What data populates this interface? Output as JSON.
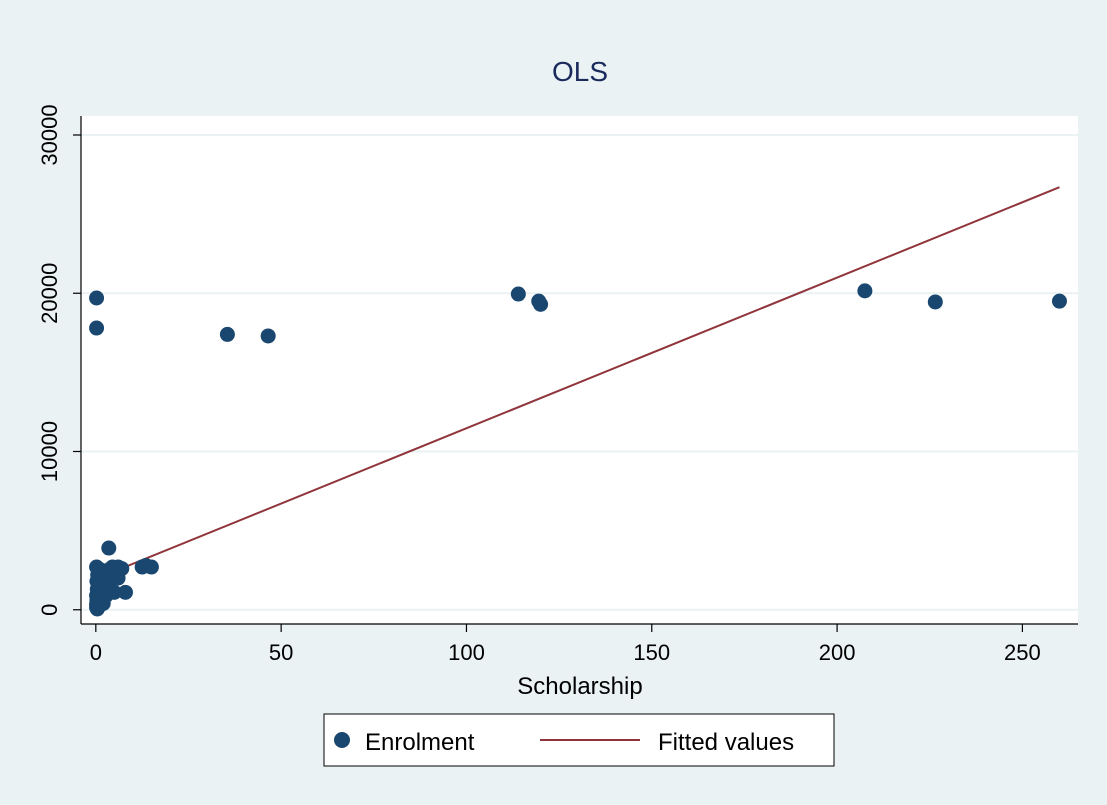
{
  "chart_data": {
    "type": "scatter",
    "title": "OLS",
    "xlabel": "Scholarship",
    "ylabel": "",
    "xlim": [
      -4,
      265
    ],
    "ylim": [
      -900,
      31200
    ],
    "x_ticks": [
      0,
      50,
      100,
      150,
      200,
      250
    ],
    "x_tick_labels": [
      "0",
      "50",
      "100",
      "150",
      "200",
      "250"
    ],
    "y_ticks": [
      0,
      10000,
      20000,
      30000
    ],
    "y_tick_labels": [
      "0",
      "10000",
      "20000",
      "30000"
    ],
    "grid": "horizontal",
    "legend_position": "bottom",
    "colors": {
      "background": "#eaf2f3",
      "plot_background": "#ffffff",
      "points": "#1a476f",
      "fitted_line": "#90353b",
      "title": "#1a2a5c",
      "grid": "#eaf2f3"
    },
    "series": [
      {
        "name": "Enrolment",
        "kind": "scatter",
        "points": [
          [
            0.2,
            19700
          ],
          [
            0.2,
            17800
          ],
          [
            35.5,
            17400
          ],
          [
            46.5,
            17300
          ],
          [
            114,
            19950
          ],
          [
            119.5,
            19500
          ],
          [
            120,
            19300
          ],
          [
            207.5,
            20150
          ],
          [
            226.5,
            19450
          ],
          [
            260,
            19500
          ],
          [
            3.5,
            3900
          ],
          [
            0.2,
            2700
          ],
          [
            0.5,
            2200
          ],
          [
            0.3,
            1800
          ],
          [
            0.4,
            1300
          ],
          [
            0.2,
            900
          ],
          [
            0.3,
            600
          ],
          [
            0.2,
            350
          ],
          [
            0.2,
            150
          ],
          [
            0.4,
            50
          ],
          [
            0.8,
            500
          ],
          [
            1.2,
            300
          ],
          [
            1.5,
            700
          ],
          [
            1.8,
            1000
          ],
          [
            2.0,
            400
          ],
          [
            1.0,
            1500
          ],
          [
            2.5,
            1800
          ],
          [
            3.0,
            2000
          ],
          [
            3.5,
            2300
          ],
          [
            4.0,
            2600
          ],
          [
            4.5,
            2700
          ],
          [
            5.0,
            2500
          ],
          [
            6.0,
            2700
          ],
          [
            6.5,
            2600
          ],
          [
            5.5,
            2200
          ],
          [
            4.0,
            1900
          ],
          [
            3.0,
            1500
          ],
          [
            2.2,
            1200
          ],
          [
            2.8,
            900
          ],
          [
            3.8,
            1300
          ],
          [
            5.0,
            1100
          ],
          [
            8.0,
            1100
          ],
          [
            12.5,
            2700
          ],
          [
            13.5,
            2800
          ],
          [
            15.0,
            2700
          ],
          [
            7.0,
            2600
          ],
          [
            6.0,
            2000
          ],
          [
            1.5,
            2500
          ],
          [
            2.0,
            2300
          ],
          [
            0.7,
            2600
          ]
        ]
      },
      {
        "name": "Fitted values",
        "kind": "line",
        "points": [
          [
            0,
            1950
          ],
          [
            260,
            26700
          ]
        ]
      }
    ]
  }
}
